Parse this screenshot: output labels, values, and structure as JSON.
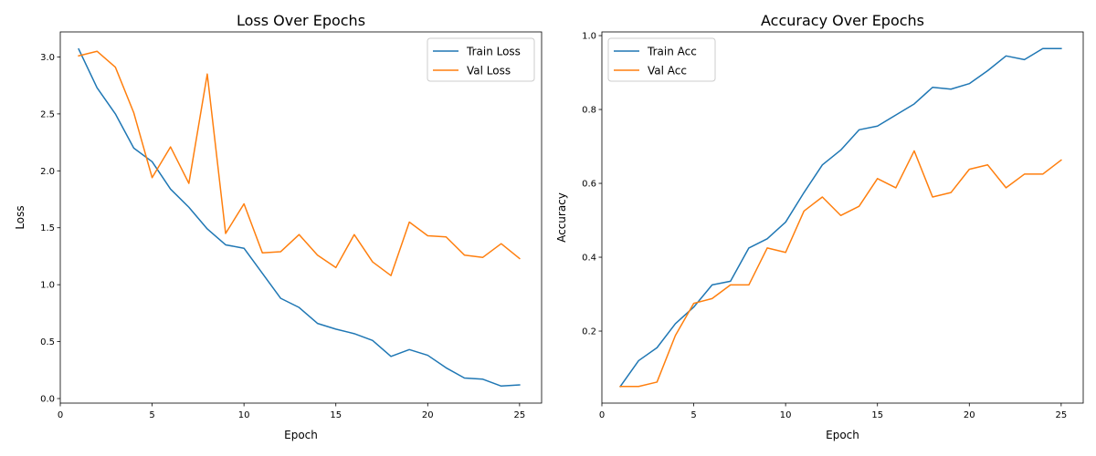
{
  "chart_data": [
    {
      "type": "line",
      "title": "Loss Over Epochs",
      "xlabel": "Epoch",
      "ylabel": "Loss",
      "xlim": [
        0,
        26.2
      ],
      "ylim": [
        -0.04,
        3.22
      ],
      "xticks": [
        0,
        5,
        10,
        15,
        20,
        25
      ],
      "xtick_labels": [
        "0",
        "5",
        "10",
        "15",
        "20",
        "25"
      ],
      "yticks": [
        0.0,
        0.5,
        1.0,
        1.5,
        2.0,
        2.5,
        3.0
      ],
      "ytick_labels": [
        "0.0",
        "0.5",
        "1.0",
        "1.5",
        "2.0",
        "2.5",
        "3.0"
      ],
      "grid": false,
      "legend": "top-right",
      "x": [
        1,
        2,
        3,
        4,
        5,
        6,
        7,
        8,
        9,
        10,
        11,
        12,
        13,
        14,
        15,
        16,
        17,
        18,
        19,
        20,
        21,
        22,
        23,
        24,
        25
      ],
      "series": [
        {
          "name": "Train Loss",
          "color": "#1f77b4",
          "values": [
            3.07,
            2.73,
            2.5,
            2.2,
            2.08,
            1.84,
            1.68,
            1.49,
            1.35,
            1.32,
            1.1,
            0.88,
            0.8,
            0.66,
            0.61,
            0.57,
            0.51,
            0.37,
            0.43,
            0.38,
            0.27,
            0.18,
            0.17,
            0.11,
            0.12
          ]
        },
        {
          "name": "Val Loss",
          "color": "#ff7f0e",
          "values": [
            3.01,
            3.05,
            2.91,
            2.51,
            1.94,
            2.21,
            1.89,
            2.85,
            1.45,
            1.71,
            1.28,
            1.29,
            1.44,
            1.26,
            1.15,
            1.44,
            1.2,
            1.08,
            1.55,
            1.43,
            1.42,
            1.26,
            1.24,
            1.36,
            1.23
          ]
        }
      ]
    },
    {
      "type": "line",
      "title": "Accuracy Over Epochs",
      "xlabel": "Epoch",
      "ylabel": "Accuracy",
      "xlim": [
        0,
        26.2
      ],
      "ylim": [
        0.005,
        1.01
      ],
      "xticks": [
        0,
        5,
        10,
        15,
        20,
        25
      ],
      "xtick_labels": [
        "0",
        "5",
        "10",
        "15",
        "20",
        "25"
      ],
      "yticks": [
        0.2,
        0.4,
        0.6,
        0.8,
        1.0
      ],
      "ytick_labels": [
        "0.2",
        "0.4",
        "0.6",
        "0.8",
        "1.0"
      ],
      "grid": false,
      "legend": "top-left",
      "x": [
        1,
        2,
        3,
        4,
        5,
        6,
        7,
        8,
        9,
        10,
        11,
        12,
        13,
        14,
        15,
        16,
        17,
        18,
        19,
        20,
        21,
        22,
        23,
        24,
        25
      ],
      "series": [
        {
          "name": "Train Acc",
          "color": "#1f77b4",
          "values": [
            0.05,
            0.12,
            0.155,
            0.22,
            0.265,
            0.325,
            0.335,
            0.425,
            0.45,
            0.495,
            0.575,
            0.65,
            0.69,
            0.745,
            0.755,
            0.785,
            0.815,
            0.86,
            0.855,
            0.87,
            0.905,
            0.945,
            0.935,
            0.965,
            0.965
          ]
        },
        {
          "name": "Val Acc",
          "color": "#ff7f0e",
          "values": [
            0.05,
            0.05,
            0.062,
            0.188,
            0.275,
            0.288,
            0.325,
            0.325,
            0.425,
            0.413,
            0.525,
            0.563,
            0.513,
            0.538,
            0.613,
            0.588,
            0.688,
            0.563,
            0.575,
            0.638,
            0.65,
            0.588,
            0.625,
            0.625,
            0.663
          ]
        }
      ]
    }
  ]
}
